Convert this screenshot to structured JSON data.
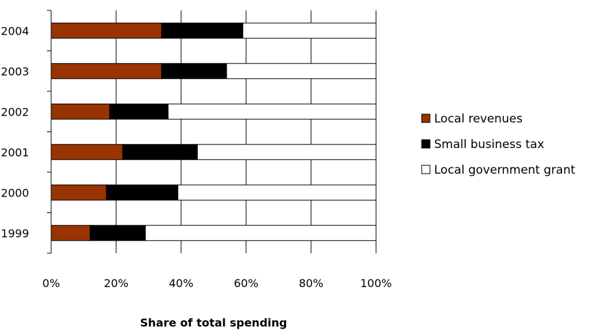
{
  "chart_data": {
    "type": "bar",
    "orientation": "horizontal",
    "stacked": true,
    "percent_stacked": true,
    "categories": [
      "1999",
      "2000",
      "2001",
      "2002",
      "2003",
      "2004"
    ],
    "series": [
      {
        "name": "Local revenues",
        "color": "#993300",
        "values": [
          12,
          17,
          22,
          18,
          34,
          34
        ]
      },
      {
        "name": "Small business tax",
        "color": "#000000",
        "values": [
          17,
          22,
          23,
          18,
          20,
          25
        ]
      },
      {
        "name": "Local government grant",
        "color": "#ffffff",
        "values": [
          71,
          61,
          55,
          64,
          46,
          41
        ]
      }
    ],
    "x_ticks": [
      "0%",
      "20%",
      "40%",
      "60%",
      "80%",
      "100%"
    ],
    "xlim": [
      0,
      100
    ],
    "xlabel": "Share of total spending",
    "ylabel": "",
    "title": "",
    "grid": "vertical",
    "legend_position": "right"
  }
}
